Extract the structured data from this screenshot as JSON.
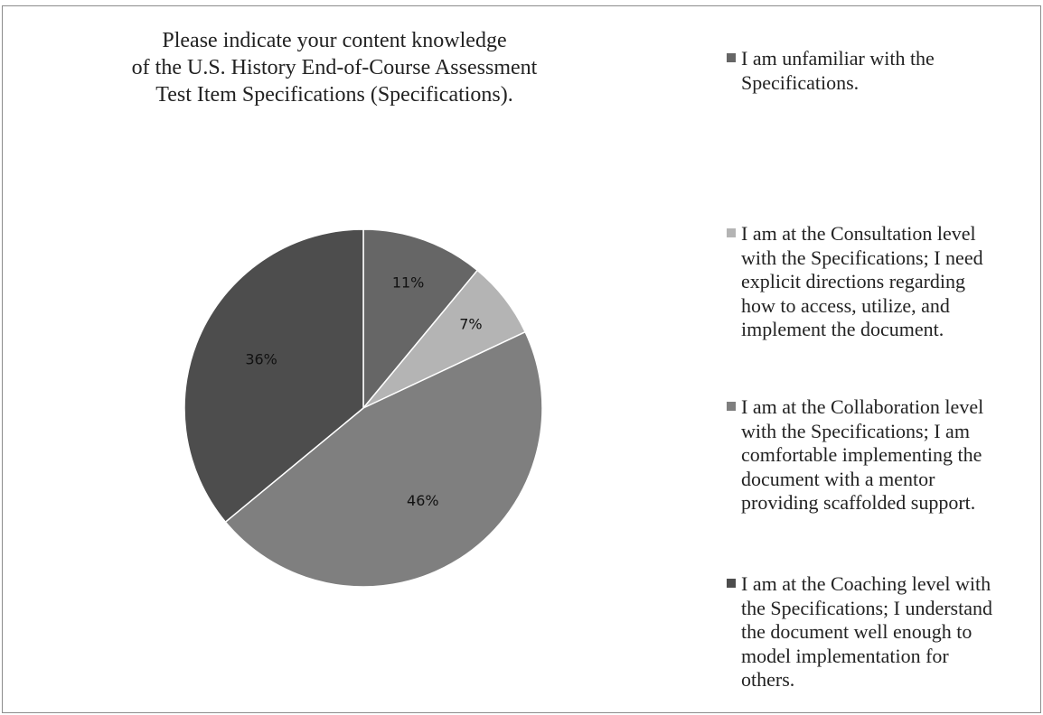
{
  "chart_data": {
    "type": "pie",
    "title_lines": [
      "Please indicate your content knowledge",
      "of the U.S. History End-of-Course Assessment",
      "Test Item Specifications (Specifications)."
    ],
    "slices": [
      {
        "label_lines": [
          "I am unfamiliar with the",
          "Specifications."
        ],
        "value": 11,
        "display": "11%",
        "color": "#666666"
      },
      {
        "label_lines": [
          "I am at the Consultation level",
          "with the Specifications; I need",
          "explicit directions regarding",
          "how to access, utilize, and",
          "implement the document."
        ],
        "value": 7,
        "display": "7%",
        "color": "#b4b4b4"
      },
      {
        "label_lines": [
          "I am at the Collaboration level",
          "with the Specifications; I am",
          "comfortable implementing the",
          "document with a mentor",
          "providing scaffolded support."
        ],
        "value": 46,
        "display": "46%",
        "color": "#7f7f7f"
      },
      {
        "label_lines": [
          "I am at the Coaching level with",
          "the Specifications; I understand",
          "the document well enough to",
          "model implementation for",
          "others."
        ],
        "value": 36,
        "display": "36%",
        "color": "#4d4d4d"
      }
    ],
    "start_angle": "12 o'clock",
    "direction": "clockwise",
    "legend_position": "right"
  }
}
